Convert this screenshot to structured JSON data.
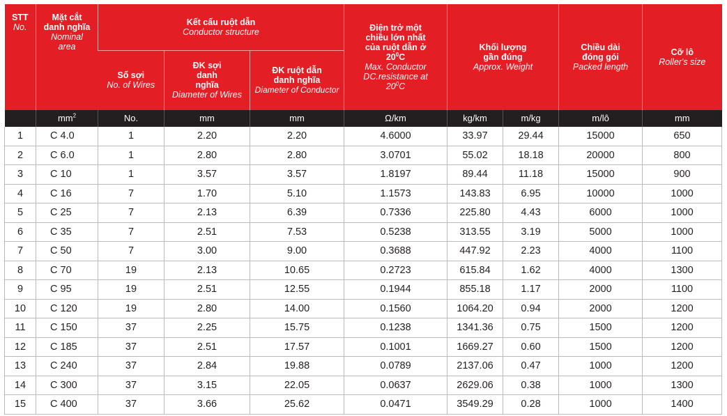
{
  "headers": {
    "stt": {
      "vi": "STT",
      "en": "No."
    },
    "section": {
      "vi": "Mặt cắt danh nghĩa",
      "en": "Nominal area"
    },
    "conductor_structure": {
      "vi": "Kết cấu ruột dẫn",
      "en": "Conductor structure"
    },
    "num_wires": {
      "vi": "Số sợi",
      "en": "No. of Wires"
    },
    "wire_diameter": {
      "vi": "ĐK sợi danh nghĩa",
      "en": "Diameter of Wires"
    },
    "conductor_diameter": {
      "vi": "ĐK ruột dẫn danh nghĩa",
      "en": "Diameter of Conductor"
    },
    "resistance": {
      "vi_1": "Điện trở một chiều lớn nhất của ruột dẫn",
      "vi_2": "ở 20",
      "vi_3": "C",
      "en_1": "Max. Conductor DC.resistance",
      "en_2": "at 20",
      "en_3": "C",
      "deg": "0"
    },
    "weight": {
      "vi": "Khối lượng gần đúng",
      "en": "Approx. Weight"
    },
    "length": {
      "vi": "Chiều dài đóng gói",
      "en": "Packed length"
    },
    "roller": {
      "vi": "Cỡ lô",
      "en": "Roller's size"
    }
  },
  "units": {
    "section_base": "mm",
    "section_exp": "2",
    "num_wires": "No.",
    "wire_diameter": "mm",
    "conductor_diameter": "mm",
    "resistance": "Ω/km",
    "weight_km": "kg/km",
    "weight_m": "m/kg",
    "length": "m/lô",
    "roller": "mm"
  },
  "rows": [
    [
      "1",
      "C 4.0",
      "1",
      "2.20",
      "2.20",
      "4.6000",
      "33.97",
      "29.44",
      "15000",
      "650"
    ],
    [
      "2",
      "C 6.0",
      "1",
      "2.80",
      "2.80",
      "3.0701",
      "55.02",
      "18.18",
      "20000",
      "800"
    ],
    [
      "3",
      "C 10",
      "1",
      "3.57",
      "3.57",
      "1.8197",
      "89.44",
      "11.18",
      "15000",
      "900"
    ],
    [
      "4",
      "C 16",
      "7",
      "1.70",
      "5.10",
      "1.1573",
      "143.83",
      "6.95",
      "10000",
      "1000"
    ],
    [
      "5",
      "C 25",
      "7",
      "2.13",
      "6.39",
      "0.7336",
      "225.80",
      "4.43",
      "6000",
      "1000"
    ],
    [
      "6",
      "C 35",
      "7",
      "2.51",
      "7.53",
      "0.5238",
      "313.55",
      "3.19",
      "5000",
      "1000"
    ],
    [
      "7",
      "C 50",
      "7",
      "3.00",
      "9.00",
      "0.3688",
      "447.92",
      "2.23",
      "4000",
      "1100"
    ],
    [
      "8",
      "C 70",
      "19",
      "2.13",
      "10.65",
      "0.2723",
      "615.84",
      "1.62",
      "4000",
      "1300"
    ],
    [
      "9",
      "C 95",
      "19",
      "2.51",
      "12.55",
      "0.1944",
      "855.18",
      "1.17",
      "2000",
      "1100"
    ],
    [
      "10",
      "C 120",
      "19",
      "2.80",
      "14.00",
      "0.1560",
      "1064.20",
      "0.94",
      "2000",
      "1200"
    ],
    [
      "11",
      "C 150",
      "37",
      "2.25",
      "15.75",
      "0.1238",
      "1341.36",
      "0.75",
      "1500",
      "1200"
    ],
    [
      "12",
      "C 185",
      "37",
      "2.51",
      "17.57",
      "0.1001",
      "1669.27",
      "0.60",
      "1500",
      "1200"
    ],
    [
      "13",
      "C 240",
      "37",
      "2.84",
      "19.88",
      "0.0789",
      "2137.06",
      "0.47",
      "1000",
      "1200"
    ],
    [
      "14",
      "C 300",
      "37",
      "3.15",
      "22.05",
      "0.0637",
      "2629.06",
      "0.38",
      "1000",
      "1300"
    ],
    [
      "15",
      "C 400",
      "37",
      "3.66",
      "25.62",
      "0.0471",
      "3549.29",
      "0.28",
      "1000",
      "1400"
    ]
  ],
  "colors": {
    "header_red": "#e31e24",
    "unit_row": "#231f20",
    "text": "#231f20"
  }
}
